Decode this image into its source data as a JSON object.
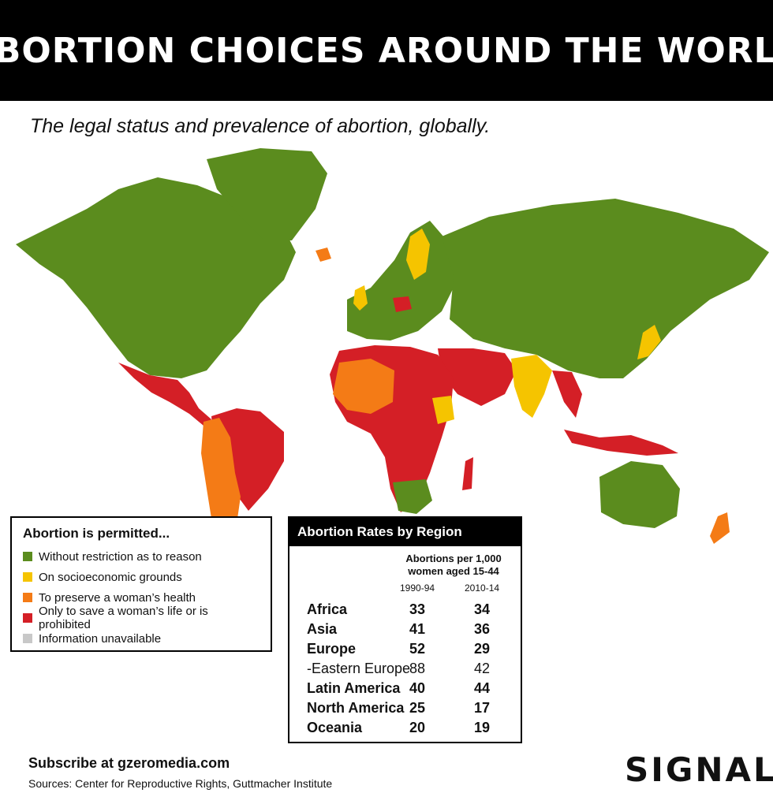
{
  "header": {
    "title": "ABORTION CHOICES AROUND THE WORLD"
  },
  "subtitle": "The legal status and prevalence of abortion, globally.",
  "colors": {
    "without_restriction": "#5b8c1e",
    "socioeconomic": "#f5c400",
    "health": "#f47b16",
    "life_or_prohibited": "#d41f26",
    "unavailable": "#c8c8c8"
  },
  "legend": {
    "title": "Abortion is permitted...",
    "items": [
      {
        "label": "Without restriction as to reason",
        "color": "#5b8c1e"
      },
      {
        "label": "On socioeconomic grounds",
        "color": "#f5c400"
      },
      {
        "label": "To preserve a woman’s health",
        "color": "#f47b16"
      },
      {
        "label": "Only to save a woman’s life or is prohibited",
        "color": "#d41f26"
      },
      {
        "label": "Information unavailable",
        "color": "#c8c8c8"
      }
    ]
  },
  "rates": {
    "title": "Abortion Rates by Region",
    "unit_line1": "Abortions per 1,000",
    "unit_line2": "women aged 15-44",
    "col1": "1990-94",
    "col2": "2010-14",
    "rows": [
      {
        "region": "Africa",
        "v1": "33",
        "v2": "34"
      },
      {
        "region": "Asia",
        "v1": "41",
        "v2": "36"
      },
      {
        "region": "Europe",
        "v1": "52",
        "v2": "29"
      },
      {
        "region": "-Eastern Europe",
        "v1": "88",
        "v2": "42"
      },
      {
        "region": "Latin America",
        "v1": "40",
        "v2": "44"
      },
      {
        "region": "North America",
        "v1": "25",
        "v2": "17"
      },
      {
        "region": "Oceania",
        "v1": "20",
        "v2": "19"
      }
    ]
  },
  "footer": {
    "subscribe": "Subscribe at gzeromedia.com",
    "sources": "Sources: Center for Reproductive Rights, Guttmacher Institute",
    "logo": "SIGNAL"
  }
}
